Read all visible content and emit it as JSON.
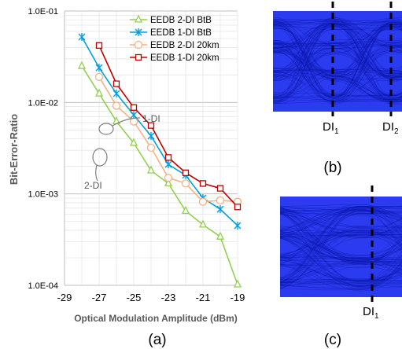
{
  "chart_data": {
    "type": "line",
    "ylabel": "Bit-Error-Ratio",
    "xlabel": "Optical Modulation Amplitude (dBm)",
    "caption": "(a)",
    "y_scale": "log",
    "ylim": [
      0.0001,
      0.1
    ],
    "xlim": [
      -29,
      -19
    ],
    "xticks": [
      "-29",
      "-27",
      "-25",
      "-23",
      "-21",
      "-19"
    ],
    "yticks": [
      "1.0E-01",
      "1.0E-02",
      "1.0E-03",
      "1.0E-04"
    ],
    "grid": true,
    "legend_position": "top-right",
    "series": [
      {
        "name": "EEDB 2-DI BtB",
        "color": "#92d050",
        "marker": "triangle",
        "x": [
          -28,
          -27,
          -26,
          -25,
          -24,
          -23,
          -22,
          -21,
          -20,
          -19
        ],
        "y": [
          0.025,
          0.0125,
          0.0062,
          0.0036,
          0.0018,
          0.0013,
          0.00065,
          0.00046,
          0.00034,
          0.000102
        ]
      },
      {
        "name": "EEDB 1-DI BtB",
        "color": "#00a0e0",
        "marker": "star",
        "x": [
          -28,
          -27,
          -26,
          -25,
          -24,
          -23,
          -22,
          -21,
          -20,
          -19
        ],
        "y": [
          0.052,
          0.024,
          0.0125,
          0.0073,
          0.0043,
          0.0021,
          0.0016,
          0.0009,
          0.00068,
          0.00045
        ]
      },
      {
        "name": "EEDB 2-DI 20km",
        "color": "#f4b183",
        "marker": "circle",
        "x": [
          -27,
          -26,
          -25,
          -24,
          -23,
          -22,
          -21,
          -20,
          -19
        ],
        "y": [
          0.019,
          0.0092,
          0.0062,
          0.0032,
          0.0015,
          0.0013,
          0.00082,
          0.00085,
          0.00082
        ]
      },
      {
        "name": "EEDB 1-DI 20km",
        "color": "#c00000",
        "marker": "square",
        "x": [
          -27,
          -26,
          -25,
          -24,
          -23,
          -22,
          -21,
          -20,
          -19
        ],
        "y": [
          0.042,
          0.016,
          0.0088,
          0.0056,
          0.0025,
          0.0017,
          0.0013,
          0.00115,
          0.00072
        ]
      }
    ],
    "annotations": [
      "1-DI",
      "2-DI"
    ]
  },
  "eye_panels": [
    {
      "caption": "(b)",
      "labels": [
        "DI",
        "DI"
      ],
      "subscripts": [
        "1",
        "2"
      ]
    },
    {
      "caption": "(c)",
      "labels": [
        "DI"
      ],
      "subscripts": [
        "1"
      ]
    }
  ],
  "colors": {
    "eye_fill": "#2b3cf0",
    "eye_dark": "#0a14a8",
    "grid": "#d9d9d9"
  }
}
